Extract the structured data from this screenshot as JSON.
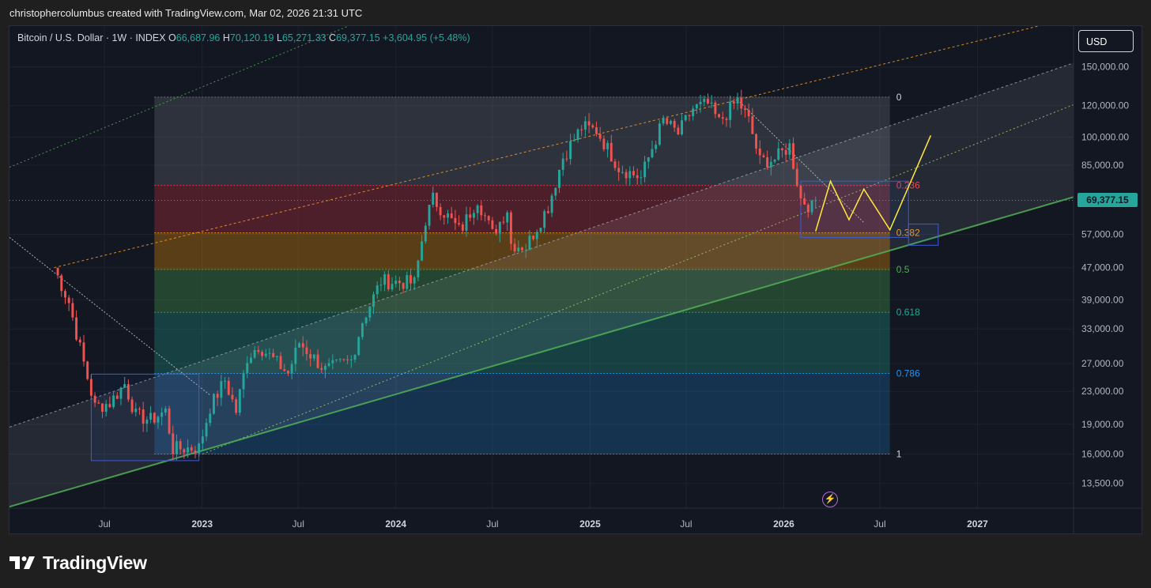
{
  "header": {
    "credit": "christophercolumbus created with TradingView.com, Mar 02, 2026 21:31 UTC"
  },
  "legend": {
    "symbol": "Bitcoin / U.S. Dollar · 1W · INDEX",
    "open_label": "O",
    "open": "66,687.96",
    "high_label": "H",
    "high": "70,120.19",
    "low_label": "L",
    "low": "65,271.33",
    "close_label": "C",
    "close": "69,377.15",
    "change": "+3,604.95 (+5.48%)"
  },
  "currency_button": "USD",
  "current_price": "69,377.15",
  "brand": {
    "name": "TradingView",
    "icon": "tradingview-logo-icon"
  },
  "alert_icon": "lightning-icon",
  "colors": {
    "up": "#26a69a",
    "down": "#ef5350",
    "background": "#131722",
    "channel_upper": "#f59d2a",
    "channel_outer": "#4caf50",
    "support": "#4caf50",
    "projection": "#ffeb3b",
    "fib_236": "#f23645",
    "fib_382": "#ff9800",
    "fib_5": "#4caf50",
    "fib_618": "#22ab94",
    "fib_786": "#2196f3"
  },
  "chart_data": {
    "type": "candlestick",
    "timeframe": "1W",
    "y_scale": "log",
    "y_axis_labels": [
      "150,000.00",
      "120,000.00",
      "100,000.00",
      "85,000.00",
      "57,000.00",
      "47,000.00",
      "39,000.00",
      "33,000.00",
      "27,000.00",
      "23,000.00",
      "19,000.00",
      "16,000.00",
      "13,500.00"
    ],
    "y_axis_values": [
      150000,
      120000,
      100000,
      85000,
      57000,
      47000,
      39000,
      33000,
      27000,
      23000,
      19000,
      16000,
      13500
    ],
    "x_axis_labels": [
      "Jul",
      "2023",
      "Jul",
      "2024",
      "Jul",
      "2025",
      "Jul",
      "2026",
      "Jul",
      "2027"
    ],
    "x_axis_dates": [
      "2022-07-01",
      "2023-01-01",
      "2023-07-01",
      "2024-01-01",
      "2024-07-01",
      "2025-01-01",
      "2025-07-01",
      "2026-01-01",
      "2026-07-01",
      "2027-01-01"
    ],
    "x_range": [
      "2022-01-03",
      "2027-07-01"
    ],
    "y_range": [
      11700,
      190000
    ],
    "last_close": 69377.15,
    "price_path": [
      [
        "2022-03-28",
        47000
      ],
      [
        "2022-04-25",
        38500
      ],
      [
        "2022-05-16",
        29500
      ],
      [
        "2022-06-13",
        21000
      ],
      [
        "2022-07-11",
        21500
      ],
      [
        "2022-08-08",
        24000
      ],
      [
        "2022-08-29",
        20000
      ],
      [
        "2022-09-26",
        19500
      ],
      [
        "2022-10-24",
        20500
      ],
      [
        "2022-11-07",
        16500
      ],
      [
        "2022-12-26",
        16600
      ],
      [
        "2023-01-16",
        21000
      ],
      [
        "2023-02-13",
        24500
      ],
      [
        "2023-03-06",
        20500
      ],
      [
        "2023-03-27",
        28000
      ],
      [
        "2023-04-17",
        30000
      ],
      [
        "2023-06-12",
        25500
      ],
      [
        "2023-07-03",
        30500
      ],
      [
        "2023-08-21",
        26000
      ],
      [
        "2023-10-09",
        27500
      ],
      [
        "2023-10-30",
        34500
      ],
      [
        "2023-12-04",
        43500
      ],
      [
        "2024-02-05",
        43000
      ],
      [
        "2024-02-26",
        62000
      ],
      [
        "2024-03-11",
        70000
      ],
      [
        "2024-05-01",
        58000
      ],
      [
        "2024-06-03",
        70000
      ],
      [
        "2024-07-01",
        57000
      ],
      [
        "2024-07-29",
        66000
      ],
      [
        "2024-08-05",
        54000
      ],
      [
        "2024-09-02",
        53000
      ],
      [
        "2024-10-14",
        67000
      ],
      [
        "2024-11-11",
        89000
      ],
      [
        "2024-12-16",
        106000
      ],
      [
        "2025-01-13",
        104000
      ],
      [
        "2025-02-24",
        84000
      ],
      [
        "2025-04-07",
        79000
      ],
      [
        "2025-04-28",
        94000
      ],
      [
        "2025-05-19",
        110000
      ],
      [
        "2025-06-16",
        102000
      ],
      [
        "2025-07-14",
        118000
      ],
      [
        "2025-08-11",
        121000
      ],
      [
        "2025-09-01",
        109000
      ],
      [
        "2025-10-06",
        124000
      ],
      [
        "2025-10-27",
        110000
      ],
      [
        "2025-11-17",
        87000
      ],
      [
        "2025-12-15",
        88000
      ],
      [
        "2026-01-12",
        95000
      ],
      [
        "2026-02-02",
        70000
      ],
      [
        "2026-02-23",
        66500
      ],
      [
        "2026-03-02",
        69377
      ]
    ],
    "fibonacci": {
      "start_date": "2022-10-03",
      "end_date": "2026-07-20",
      "levels": [
        {
          "label": "0",
          "price": 126000
        },
        {
          "label": "0.236",
          "price": 75600
        },
        {
          "label": "0.382",
          "price": 57500
        },
        {
          "label": "0.5",
          "price": 46500
        },
        {
          "label": "0.618",
          "price": 36300
        },
        {
          "label": "0.786",
          "price": 25500
        },
        {
          "label": "1",
          "price": 16000
        }
      ]
    },
    "trendlines": [
      {
        "kind": "channel-upper",
        "color": "#f59d2a",
        "points": [
          [
            "2022-03-28",
            47000
          ],
          [
            "2025-10-06",
            124000
          ]
        ]
      },
      {
        "kind": "channel-mid",
        "color": "#9aa0a8",
        "points": [
          [
            "2022-01-03",
            18700
          ],
          [
            "2024-12-16",
            58000
          ]
        ]
      },
      {
        "kind": "channel-outer",
        "color": "#4caf50",
        "points": [
          [
            "2022-01-03",
            84000
          ],
          [
            "2023-09-04",
            183000
          ]
        ]
      },
      {
        "kind": "lower-channel",
        "color": "#9ccc65",
        "points": [
          [
            "2023-01-02",
            16000
          ],
          [
            "2025-09-01",
            53000
          ]
        ]
      },
      {
        "kind": "support",
        "color": "#4caf50",
        "points": [
          [
            "2022-01-03",
            11800
          ],
          [
            "2027-06-28",
            70500
          ]
        ]
      },
      {
        "kind": "resistance-dotted",
        "color": "#c7c7c7",
        "points": [
          [
            "2022-01-03",
            56000
          ],
          [
            "2023-01-16",
            22500
          ]
        ]
      },
      {
        "kind": "resistance-dotted",
        "color": "#c7c7c7",
        "points": [
          [
            "2025-10-06",
            124000
          ],
          [
            "2026-06-01",
            61000
          ]
        ]
      }
    ],
    "projection": [
      [
        "2026-03-02",
        58000
      ],
      [
        "2026-03-30",
        77500
      ],
      [
        "2026-05-04",
        62000
      ],
      [
        "2026-06-01",
        74000
      ],
      [
        "2026-07-20",
        58500
      ],
      [
        "2026-10-05",
        101000
      ]
    ],
    "boxes": [
      {
        "from": "2022-06-06",
        "to": "2022-12-26",
        "low": 15400,
        "high": 25400
      },
      {
        "from": "2026-02-02",
        "to": "2026-08-24",
        "low": 56000,
        "high": 77500
      },
      {
        "from": "2026-08-24",
        "to": "2026-10-19",
        "low": 53500,
        "high": 60500
      }
    ]
  }
}
